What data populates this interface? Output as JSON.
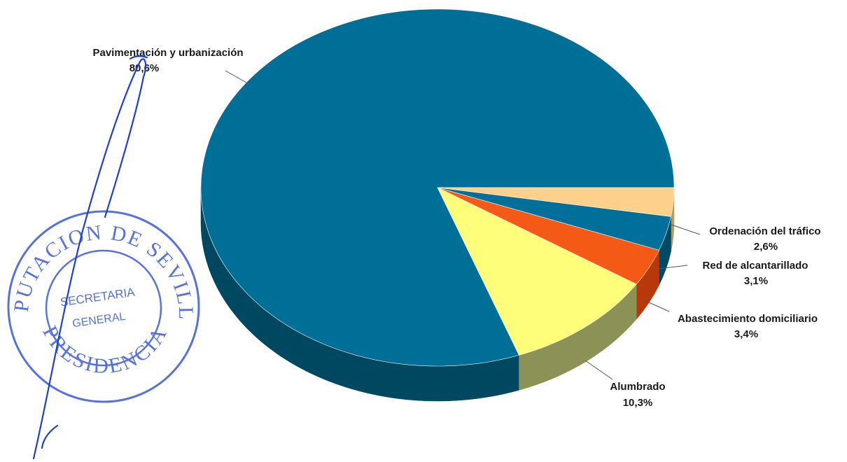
{
  "colors": {
    "background": "#ffffff",
    "stamp": "#3a5bd4",
    "ink": "#1f3fd0",
    "label_text": "#1a1a1a"
  },
  "stamp": {
    "ring_text": "DIPUTACION DE SEVILLA",
    "bottom_text": "PRESIDENCIA",
    "center_line1": "SECRETARIA",
    "center_line2": "GENERAL"
  },
  "chart_data": {
    "type": "pie",
    "style": "3d",
    "legend": "none",
    "slices": [
      {
        "id": "pavimentacion",
        "label": "Pavimentación y urbanización",
        "value": 80.6,
        "value_label": "80,6%",
        "top_color": "#006f97",
        "side_color": "#00485f"
      },
      {
        "id": "ordenacion",
        "label": "Ordenación del tráfico",
        "value": 2.6,
        "value_label": "2,6%",
        "top_color": "#fdd08c",
        "side_color": "#b89a5c"
      },
      {
        "id": "red",
        "label": "Red de alcantarillado",
        "value": 3.1,
        "value_label": "3,1%",
        "top_color": "#00709a",
        "side_color": "#004a63"
      },
      {
        "id": "abastecimiento",
        "label": "Abastecimiento domiciliario",
        "value": 3.4,
        "value_label": "3,4%",
        "top_color": "#f45a16",
        "side_color": "#b8380a"
      },
      {
        "id": "alumbrado",
        "label": "Alumbrado",
        "value": 10.3,
        "value_label": "10,3%",
        "top_color": "#fffe7a",
        "side_color": "#8c9155"
      }
    ]
  }
}
